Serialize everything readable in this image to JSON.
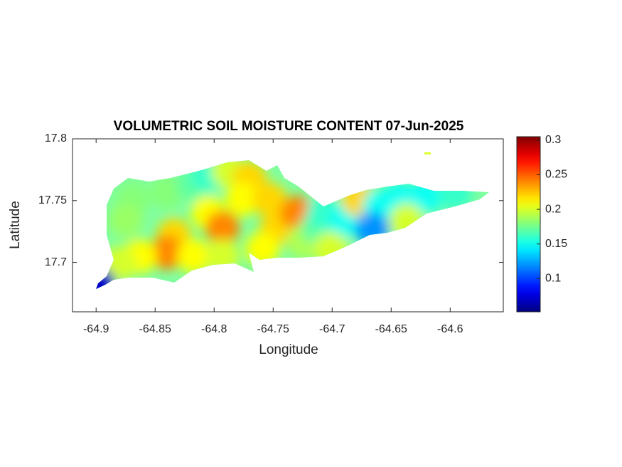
{
  "chart_data": {
    "type": "map",
    "title": "VOLUMETRIC SOIL MOISTURE CONTENT 07-Jun-2025",
    "x_label": "Longitude",
    "y_label": "Latitude",
    "xlim": [
      -64.92,
      -64.555
    ],
    "ylim": [
      17.66,
      17.8
    ],
    "xticks": [
      -64.9,
      -64.85,
      -64.8,
      -64.75,
      -64.7,
      -64.65,
      -64.6
    ],
    "yticks": [
      17.7,
      17.75,
      17.8
    ],
    "colormap": "jet",
    "clim": [
      0.052,
      0.305
    ],
    "cticks": [
      0.1,
      0.15,
      0.2,
      0.25,
      0.3
    ],
    "points": {
      "lon": [
        -64.869,
        -64.84,
        -64.875,
        -64.817,
        -64.805,
        -64.788,
        -64.77,
        -64.776,
        -64.805,
        -64.793,
        -64.834,
        -64.84,
        -64.863,
        -64.88,
        -64.817,
        -64.793,
        -64.753,
        -64.747,
        -64.759,
        -64.73,
        -64.724,
        -64.712,
        -64.707,
        -64.689,
        -64.701,
        -64.678,
        -64.66,
        -64.643,
        -64.62,
        -64.596,
        -64.666,
        -64.637,
        -64.898
      ],
      "lat": [
        17.751,
        17.757,
        17.734,
        17.763,
        17.771,
        17.774,
        17.768,
        17.751,
        17.74,
        17.728,
        17.722,
        17.708,
        17.705,
        17.699,
        17.705,
        17.705,
        17.751,
        17.728,
        17.711,
        17.74,
        17.717,
        17.728,
        17.74,
        17.734,
        17.711,
        17.751,
        17.745,
        17.751,
        17.754,
        17.756,
        17.727,
        17.734,
        17.682
      ],
      "values": [
        0.18,
        0.18,
        0.185,
        0.17,
        0.16,
        0.2,
        0.22,
        0.21,
        0.21,
        0.24,
        0.22,
        0.24,
        0.21,
        0.2,
        0.21,
        0.2,
        0.22,
        0.22,
        0.21,
        0.24,
        0.19,
        0.17,
        0.16,
        0.15,
        0.2,
        0.22,
        0.15,
        0.15,
        0.15,
        0.16,
        0.12,
        0.2,
        0.07
      ]
    }
  }
}
